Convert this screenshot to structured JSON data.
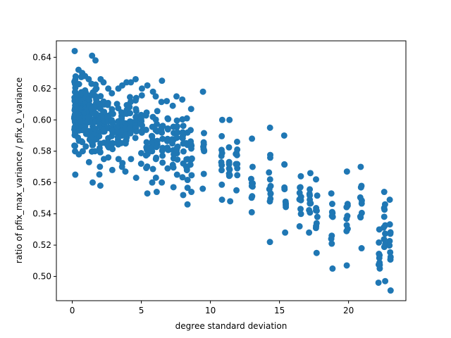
{
  "chart_data": {
    "type": "scatter",
    "title": "",
    "xlabel": "degree standard deviation",
    "ylabel": "ratio of pfix_max_variance / pfix_0_variance",
    "xlim": [
      -1.15,
      24.15
    ],
    "ylim": [
      0.4845,
      0.6505
    ],
    "xticks": [
      0,
      5,
      10,
      15,
      20
    ],
    "yticks": [
      0.5,
      0.52,
      0.54,
      0.56,
      0.58,
      0.6,
      0.62,
      0.64
    ],
    "ytick_labels": [
      "0.50",
      "0.52",
      "0.54",
      "0.56",
      "0.58",
      "0.60",
      "0.62",
      "0.64"
    ],
    "grid": false,
    "legend": "none",
    "marker_color": "#1f77b4",
    "x_groups": [
      0.2,
      0.45,
      0.7,
      0.95,
      1.2,
      1.45,
      1.7,
      2.0,
      2.3,
      2.6,
      2.9,
      3.3,
      3.6,
      3.9,
      4.2,
      4.6,
      5.0,
      5.4,
      5.8,
      6.1,
      6.5,
      6.9,
      7.3,
      7.6,
      8.0,
      8.3,
      8.6,
      9.5,
      10.8,
      11.4,
      11.9,
      13.0,
      14.3,
      15.4,
      16.5,
      17.2,
      17.7,
      18.8,
      19.9,
      20.9,
      22.2,
      22.6,
      23.0
    ],
    "group_ranges": [
      [
        0.565,
        0.644
      ],
      [
        0.578,
        0.632
      ],
      [
        0.58,
        0.63
      ],
      [
        0.583,
        0.628
      ],
      [
        0.573,
        0.626
      ],
      [
        0.56,
        0.641
      ],
      [
        0.58,
        0.638
      ],
      [
        0.558,
        0.626
      ],
      [
        0.575,
        0.624
      ],
      [
        0.576,
        0.62
      ],
      [
        0.568,
        0.617
      ],
      [
        0.575,
        0.62
      ],
      [
        0.57,
        0.622
      ],
      [
        0.567,
        0.624
      ],
      [
        0.575,
        0.624
      ],
      [
        0.563,
        0.626
      ],
      [
        0.572,
        0.62
      ],
      [
        0.553,
        0.622
      ],
      [
        0.56,
        0.618
      ],
      [
        0.554,
        0.615
      ],
      [
        0.56,
        0.625
      ],
      [
        0.569,
        0.612
      ],
      [
        0.557,
        0.609
      ],
      [
        0.565,
        0.615
      ],
      [
        0.552,
        0.613
      ],
      [
        0.546,
        0.601
      ],
      [
        0.554,
        0.607
      ],
      [
        0.556,
        0.618
      ],
      [
        0.549,
        0.6
      ],
      [
        0.548,
        0.6
      ],
      [
        0.555,
        0.586
      ],
      [
        0.541,
        0.588
      ],
      [
        0.522,
        0.595
      ],
      [
        0.528,
        0.59
      ],
      [
        0.532,
        0.564
      ],
      [
        0.528,
        0.566
      ],
      [
        0.515,
        0.562
      ],
      [
        0.505,
        0.553
      ],
      [
        0.507,
        0.567
      ],
      [
        0.518,
        0.57
      ],
      [
        0.496,
        0.53
      ],
      [
        0.497,
        0.554
      ],
      [
        0.491,
        0.549
      ]
    ],
    "points_per_group": [
      48,
      36,
      34,
      30,
      28,
      24,
      22,
      22,
      20,
      18,
      16,
      16,
      16,
      16,
      16,
      16,
      14,
      14,
      14,
      14,
      14,
      12,
      12,
      12,
      14,
      12,
      12,
      10,
      10,
      10,
      10,
      10,
      12,
      10,
      10,
      10,
      10,
      10,
      10,
      10,
      10,
      12,
      10
    ]
  }
}
